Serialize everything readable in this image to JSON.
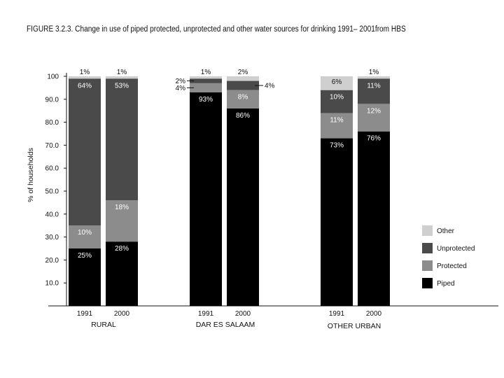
{
  "chart_data": {
    "type": "bar",
    "stacked": true,
    "title": "FIGURE 3.2.3. Change in use of piped protected, unprotected and other water sources for drinking 1991– 2001from HBS",
    "ylabel": "% of households",
    "ylim": [
      0,
      100
    ],
    "yticks": [
      "100",
      "90.0",
      "80.0",
      "70.0",
      "60.0",
      "50.0",
      "40.0",
      "30.0",
      "20.0",
      "10.0"
    ],
    "legend_position": "right",
    "groups": [
      "RURAL",
      "DAR ES SALAAM",
      "OTHER URBAN"
    ],
    "categories": [
      "1991",
      "2000",
      "1991",
      "2000",
      "1991",
      "2000"
    ],
    "series": [
      {
        "name": "Piped",
        "color": "#000000",
        "text_color": "#ffffff",
        "values": [
          25,
          28,
          93,
          86,
          73,
          76
        ],
        "labels": [
          "25%",
          "28%",
          "93%",
          "86%",
          "73%",
          "76%"
        ]
      },
      {
        "name": "Protected",
        "color": "#8c8c8c",
        "text_color": "#ffffff",
        "values": [
          10,
          18,
          4,
          8,
          11,
          12
        ],
        "labels": [
          "10%",
          "18%",
          "4%",
          "8%",
          "11%",
          "12%"
        ]
      },
      {
        "name": "Unprotected",
        "color": "#4a4a4a",
        "text_color": "#ffffff",
        "values": [
          64,
          53,
          2,
          4,
          10,
          11
        ],
        "labels": [
          "64%",
          "53%",
          "2%",
          "4%",
          "10%",
          "11%"
        ]
      },
      {
        "name": "Other",
        "color": "#cfcfcf",
        "text_color": "#111111",
        "values": [
          1,
          1,
          1,
          2,
          6,
          1
        ],
        "labels": [
          "1%",
          "1%",
          "1%",
          "2%",
          "6%",
          "1%"
        ]
      }
    ]
  }
}
